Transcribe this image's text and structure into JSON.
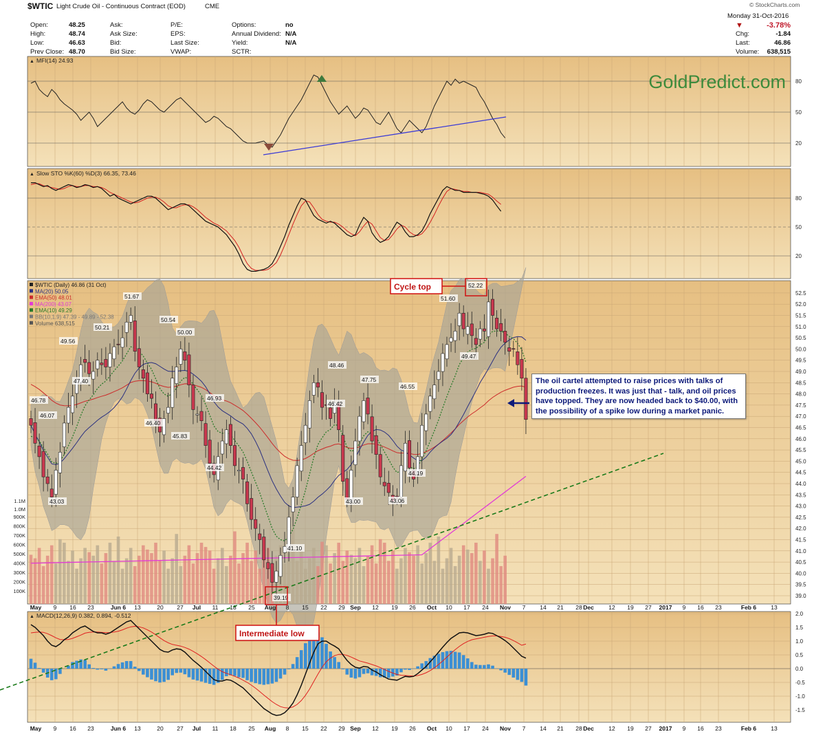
{
  "header": {
    "symbol": "$WTIC",
    "name": "Light Crude Oil - Continuous Contract (EOD)",
    "exchange": "CME",
    "copyright": "© StockCharts.com",
    "date": "Monday   31-Oct-2016",
    "pct_change": "-3.78%",
    "chg_label": "Chg:",
    "chg": "-1.84",
    "last_label": "Last:",
    "last": "46.86",
    "volume_label": "Volume:",
    "volume": "638,515",
    "fields": [
      {
        "label": "Open:",
        "value": "48.25"
      },
      {
        "label": "High:",
        "value": "48.74"
      },
      {
        "label": "Low:",
        "value": "46.63"
      },
      {
        "label": "Prev Close:",
        "value": "48.70"
      }
    ],
    "fields2": [
      "Ask:",
      "Ask Size:",
      "Bid:",
      "Bid Size:"
    ],
    "fields3": [
      "P/E:",
      "EPS:",
      "Last Size:",
      "VWAP:"
    ],
    "fields4": [
      {
        "label": "Options:",
        "value": "no"
      },
      {
        "label": "Annual Dividend:",
        "value": "N/A"
      },
      {
        "label": "Yield:",
        "value": "N/A"
      },
      {
        "label": "SCTR:",
        "value": ""
      }
    ]
  },
  "watermark": "GoldPredict.com",
  "note": "The oil cartel attempted to raise prices with talks of production freezes. It was just that - talk, and oil prices have topped. They are now headed back to $40.00, with the possibility of a spike low during a market panic.",
  "labels": {
    "cycle_top": "Cycle top",
    "intermediate_low": "Intermediate low"
  },
  "colors": {
    "background": "#e3b97c",
    "up_candle": "#ffffff",
    "down_candle": "#c8384e",
    "ma20": "#2a3080",
    "ema50": "#cc2a2a",
    "ma200": "#e23bd6",
    "ema10": "#2a7a2a",
    "bands": "#a7a596",
    "trendline": "#1a7a1a",
    "macd_hist": "#3b8fd4",
    "mfi_trend": "#3a3ad6"
  },
  "chart_data": [
    {
      "type": "line",
      "name": "MFI",
      "title": "MFI(14) 24.93",
      "ylim": [
        0,
        100
      ],
      "yticks": [
        20,
        50,
        80
      ],
      "values": [
        78,
        80,
        72,
        68,
        65,
        72,
        68,
        62,
        58,
        55,
        52,
        48,
        42,
        46,
        50,
        44,
        36,
        40,
        44,
        48,
        52,
        56,
        60,
        54,
        50,
        48,
        52,
        58,
        62,
        60,
        56,
        52,
        50,
        54,
        58,
        62,
        64,
        60,
        56,
        52,
        48,
        44,
        40,
        42,
        46,
        44,
        40,
        36,
        34,
        30,
        26,
        22,
        20,
        20,
        20,
        21,
        22,
        18,
        16,
        22,
        28,
        36,
        44,
        50,
        56,
        62,
        70,
        78,
        86,
        84,
        76,
        68,
        60,
        54,
        48,
        52,
        56,
        50,
        44,
        48,
        54,
        52,
        46,
        40,
        38,
        44,
        50,
        42,
        34,
        30,
        36,
        42,
        38,
        34,
        30,
        36,
        46,
        56,
        64,
        72,
        80,
        76,
        82,
        78,
        80,
        78,
        76,
        74,
        66,
        60,
        52,
        44,
        38,
        30,
        24.93
      ]
    },
    {
      "type": "line",
      "name": "Slow STO",
      "title": "Slow STO %K(60) %D(3) 66.35, 73.46",
      "ylim": [
        0,
        100
      ],
      "yticks": [
        20,
        50,
        80
      ],
      "series": [
        {
          "name": "%K",
          "values": [
            96,
            96,
            94,
            92,
            93,
            90,
            88,
            90,
            92,
            94,
            93,
            91,
            92,
            94,
            93,
            91,
            92,
            90,
            86,
            82,
            84,
            80,
            78,
            76,
            74,
            76,
            78,
            80,
            82,
            82,
            80,
            76,
            72,
            68,
            70,
            72,
            74,
            74,
            72,
            68,
            64,
            60,
            56,
            54,
            52,
            50,
            46,
            42,
            36,
            30,
            22,
            12,
            6,
            4,
            4,
            5,
            6,
            8,
            12,
            20,
            30,
            40,
            52,
            62,
            72,
            80,
            78,
            70,
            62,
            58,
            56,
            54,
            56,
            54,
            50,
            46,
            42,
            40,
            42,
            52,
            60,
            56,
            44,
            38,
            34,
            36,
            40,
            48,
            55,
            52,
            45,
            40,
            40,
            42,
            46,
            54,
            64,
            72,
            80,
            88,
            92,
            90,
            88,
            88,
            86,
            86,
            86,
            86,
            85,
            84,
            82,
            78,
            72,
            66.35
          ]
        },
        {
          "name": "%D",
          "values": [
            94,
            95,
            95,
            93,
            92,
            91,
            90,
            89,
            90,
            92,
            93,
            92,
            92,
            93,
            93,
            92,
            92,
            91,
            89,
            86,
            84,
            82,
            80,
            78,
            76,
            75,
            76,
            78,
            80,
            81,
            81,
            79,
            76,
            72,
            70,
            70,
            72,
            73,
            73,
            71,
            68,
            64,
            60,
            57,
            54,
            52,
            49,
            46,
            41,
            36,
            29,
            20,
            12,
            7,
            5,
            5,
            5,
            6,
            9,
            13,
            21,
            31,
            42,
            53,
            63,
            72,
            77,
            76,
            70,
            63,
            58,
            56,
            55,
            55,
            53,
            50,
            46,
            43,
            41,
            45,
            51,
            56,
            53,
            46,
            39,
            36,
            37,
            42,
            48,
            52,
            50,
            45,
            42,
            41,
            43,
            48,
            55,
            63,
            72,
            80,
            87,
            90,
            89,
            88,
            87,
            87,
            86,
            86,
            86,
            85,
            84,
            81,
            77,
            73.46
          ]
        }
      ]
    },
    {
      "type": "candlestick",
      "name": "$WTIC (Daily)",
      "title": "$WTIC (Daily) 46.86 (31 Oct)",
      "x_date_labels": [
        "May",
        "9",
        "16",
        "23",
        "Jun 6",
        "13",
        "20",
        "27",
        "Jul",
        "11",
        "18",
        "25",
        "Aug",
        "8",
        "15",
        "22",
        "29",
        "Sep",
        "12",
        "19",
        "26",
        "Oct",
        "10",
        "17",
        "24",
        "Nov",
        "7",
        "14",
        "21",
        "28",
        "Dec",
        "12",
        "19",
        "27",
        "2017",
        "9",
        "16",
        "23",
        "Feb 6",
        "13"
      ],
      "ylim": [
        39,
        52.5
      ],
      "ylabel_ticks": [
        39.0,
        39.5,
        40.0,
        40.5,
        41.0,
        41.5,
        42.0,
        42.5,
        43.0,
        43.5,
        44.0,
        44.5,
        45.0,
        45.5,
        46.0,
        46.5,
        47.0,
        47.5,
        48.0,
        48.5,
        49.0,
        49.5,
        50.0,
        50.5,
        51.0,
        51.5,
        52.0,
        52.5
      ],
      "volume_ticks": [
        "100K",
        "200K",
        "300K",
        "400K",
        "500K",
        "600K",
        "700K",
        "800K",
        "900K",
        "1.1M",
        "1.0M"
      ],
      "legend": [
        "$WTIC (Daily) 46.86 (31 Oct)",
        "MA(20) 50.05",
        "EMA(50) 48.01",
        "MA(200) 43.07",
        "EMA(10) 49.29",
        "BB(10,1.9) 47.39 - 49.89 - 52.38",
        "Volume 638,515"
      ],
      "closes": [
        46.6,
        45.8,
        45.2,
        44.3,
        44.0,
        43.4,
        44.6,
        45.4,
        46.7,
        47.4,
        47.9,
        48.6,
        49.3,
        49.4,
        48.9,
        49.0,
        49.5,
        49.3,
        49.2,
        49.8,
        50.1,
        50.2,
        50.5,
        51.2,
        51.5,
        49.9,
        49.2,
        48.7,
        48.0,
        47.8,
        46.8,
        46.3,
        46.9,
        47.4,
        48.7,
        49.2,
        50.0,
        49.5,
        48.4,
        47.3,
        47.1,
        46.8,
        45.7,
        44.9,
        44.4,
        45.2,
        45.9,
        46.4,
        45.7,
        44.8,
        44.6,
        44.2,
        43.1,
        42.4,
        42.0,
        41.5,
        40.6,
        40.2,
        39.6,
        40.1,
        40.8,
        41.2,
        42.5,
        43.4,
        44.8,
        45.7,
        46.6,
        47.7,
        48.5,
        48.3,
        47.4,
        47.5,
        46.9,
        47.6,
        46.4,
        44.1,
        43.3,
        44.6,
        45.9,
        47.0,
        47.7,
        47.1,
        45.9,
        45.3,
        44.3,
        43.9,
        43.6,
        43.2,
        43.4,
        44.8,
        45.8,
        44.7,
        44.2,
        45.2,
        46.6,
        47.1,
        47.9,
        48.4,
        49.0,
        49.8,
        50.2,
        50.5,
        50.8,
        51.6,
        50.9,
        51.0,
        50.6,
        50.2,
        50.9,
        50.8,
        52.1,
        51.5,
        50.9,
        50.8,
        50.3,
        49.9,
        50.0,
        49.3,
        48.7,
        46.86
      ],
      "annotations": [
        {
          "text": "46.78",
          "value": 46.78
        },
        {
          "text": "46.07",
          "value": 46.07
        },
        {
          "text": "43.03",
          "value": 43.03
        },
        {
          "text": "49.56",
          "value": 49.56
        },
        {
          "text": "47.40",
          "value": 47.4
        },
        {
          "text": "50.21",
          "value": 50.21
        },
        {
          "text": "51.67",
          "value": 51.67
        },
        {
          "text": "46.40",
          "value": 46.4
        },
        {
          "text": "50.54",
          "value": 50.54
        },
        {
          "text": "45.83",
          "value": 45.83
        },
        {
          "text": "50.00",
          "value": 50.0
        },
        {
          "text": "46.93",
          "value": 46.93
        },
        {
          "text": "44.42",
          "value": 44.42
        },
        {
          "text": "39.19",
          "value": 39.19
        },
        {
          "text": "41.10",
          "value": 41.1
        },
        {
          "text": "48.46",
          "value": 48.46
        },
        {
          "text": "46.42",
          "value": 46.42
        },
        {
          "text": "47.75",
          "value": 47.75
        },
        {
          "text": "43.00",
          "value": 43.0
        },
        {
          "text": "43.06",
          "value": 43.06
        },
        {
          "text": "46.55",
          "value": 46.55
        },
        {
          "text": "44.19",
          "value": 44.19
        },
        {
          "text": "51.60",
          "value": 51.6
        },
        {
          "text": "52.22",
          "value": 52.22
        },
        {
          "text": "49.47",
          "value": 49.47
        }
      ]
    },
    {
      "type": "line",
      "name": "MACD",
      "title": "MACD(12,26,9) 0.382, 0.894, -0.512",
      "ylim": [
        -1.75,
        2.0
      ],
      "yticks": [
        2.0,
        1.5,
        1.0,
        0.5,
        0.0,
        -0.5,
        -1.0,
        -1.5
      ],
      "series": [
        {
          "name": "MACD",
          "values": [
            1.6,
            1.5,
            1.35,
            1.2,
            1.0,
            0.85,
            0.8,
            0.9,
            1.05,
            1.15,
            1.3,
            1.4,
            1.5,
            1.55,
            1.45,
            1.35,
            1.3,
            1.3,
            1.25,
            1.3,
            1.4,
            1.5,
            1.6,
            1.7,
            1.75,
            1.6,
            1.45,
            1.3,
            1.15,
            1.0,
            0.85,
            0.7,
            0.62,
            0.6,
            0.68,
            0.72,
            0.7,
            0.6,
            0.45,
            0.3,
            0.18,
            0.05,
            -0.1,
            -0.25,
            -0.4,
            -0.45,
            -0.45,
            -0.4,
            -0.42,
            -0.5,
            -0.6,
            -0.7,
            -0.85,
            -1.0,
            -1.15,
            -1.3,
            -1.45,
            -1.55,
            -1.65,
            -1.7,
            -1.68,
            -1.6,
            -1.45,
            -1.25,
            -0.95,
            -0.6,
            -0.2,
            0.2,
            0.6,
            0.9,
            1.0,
            1.0,
            0.9,
            0.82,
            0.72,
            0.5,
            0.3,
            0.15,
            0.05,
            0.02,
            0.08,
            0.06,
            -0.05,
            -0.12,
            -0.22,
            -0.3,
            -0.38,
            -0.4,
            -0.42,
            -0.35,
            -0.28,
            -0.3,
            -0.28,
            -0.18,
            -0.05,
            0.08,
            0.25,
            0.42,
            0.6,
            0.78,
            0.95,
            1.1,
            1.2,
            1.3,
            1.32,
            1.3,
            1.25,
            1.2,
            1.22,
            1.25,
            1.3,
            1.28,
            1.2,
            1.12,
            1.02,
            0.9,
            0.75,
            0.6,
            0.45,
            0.382
          ]
        },
        {
          "name": "Signal",
          "values": [
            1.3,
            1.32,
            1.33,
            1.32,
            1.27,
            1.2,
            1.12,
            1.06,
            1.05,
            1.06,
            1.1,
            1.16,
            1.22,
            1.29,
            1.32,
            1.33,
            1.33,
            1.32,
            1.31,
            1.31,
            1.33,
            1.36,
            1.41,
            1.47,
            1.52,
            1.54,
            1.52,
            1.48,
            1.41,
            1.33,
            1.23,
            1.12,
            1.02,
            0.94,
            0.88,
            0.85,
            0.82,
            0.77,
            0.71,
            0.63,
            0.54,
            0.44,
            0.33,
            0.21,
            0.09,
            -0.02,
            -0.11,
            -0.17,
            -0.22,
            -0.28,
            -0.34,
            -0.42,
            -0.5,
            -0.6,
            -0.71,
            -0.83,
            -0.96,
            -1.08,
            -1.2,
            -1.3,
            -1.38,
            -1.42,
            -1.43,
            -1.39,
            -1.3,
            -1.16,
            -0.97,
            -0.74,
            -0.47,
            -0.2,
            0.05,
            0.25,
            0.38,
            0.47,
            0.52,
            0.52,
            0.48,
            0.42,
            0.35,
            0.28,
            0.24,
            0.2,
            0.15,
            0.1,
            0.04,
            -0.03,
            -0.1,
            -0.16,
            -0.21,
            -0.24,
            -0.25,
            -0.26,
            -0.27,
            -0.25,
            -0.21,
            -0.15,
            -0.07,
            0.03,
            0.15,
            0.28,
            0.42,
            0.56,
            0.69,
            0.81,
            0.91,
            0.99,
            1.05,
            1.08,
            1.11,
            1.14,
            1.17,
            1.19,
            1.19,
            1.17,
            1.14,
            1.09,
            1.02,
            0.94,
            0.85,
            0.894
          ]
        }
      ]
    }
  ]
}
